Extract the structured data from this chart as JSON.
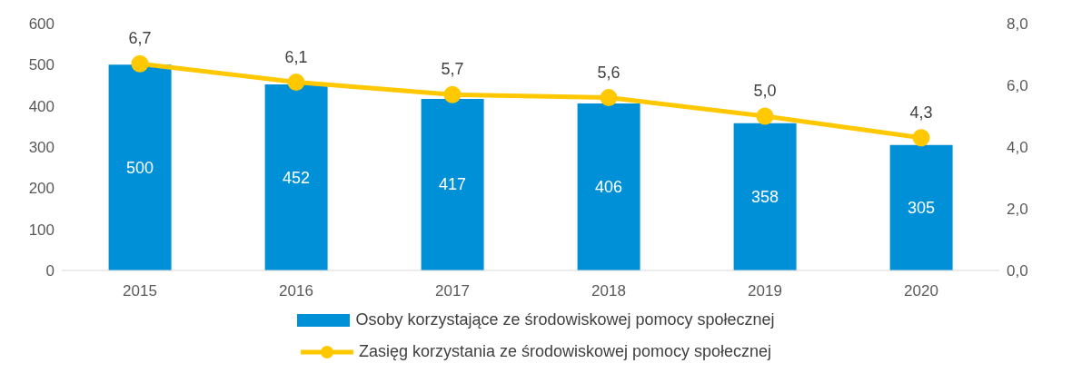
{
  "chart_data": {
    "type": "bar",
    "categories": [
      "2015",
      "2016",
      "2017",
      "2018",
      "2019",
      "2020"
    ],
    "series": [
      {
        "name": "Osoby korzystające ze środowiskowej pomocy społecznej",
        "color": "#0090d8",
        "values": [
          500,
          452,
          417,
          406,
          358,
          305
        ],
        "value_labels": [
          "500",
          "452",
          "417",
          "406",
          "358",
          "305"
        ]
      },
      {
        "name": "Zasięg korzystania ze środowiskowej pomocy społecznej",
        "type": "line",
        "axis": "y2",
        "color": "#ffc800",
        "values": [
          6.7,
          6.1,
          5.7,
          5.6,
          5.0,
          4.3
        ],
        "value_labels": [
          "6,7",
          "6,1",
          "5,7",
          "5,6",
          "5,0",
          "4,3"
        ]
      }
    ],
    "ylim": [
      0,
      600
    ],
    "yticks": [
      0,
      100,
      200,
      300,
      400,
      500,
      600
    ],
    "y2lim": [
      0,
      8
    ],
    "y2ticks": [
      {
        "value": 0,
        "label": "0,0"
      },
      {
        "value": 2,
        "label": "2,0"
      },
      {
        "value": 4,
        "label": "4,0"
      },
      {
        "value": 6,
        "label": "6,0"
      },
      {
        "value": 8,
        "label": "8,0"
      }
    ],
    "grid": false,
    "legend": "bottom",
    "marker": "circle"
  }
}
